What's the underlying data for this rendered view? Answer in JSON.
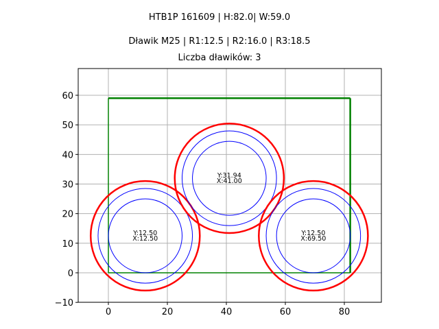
{
  "titles": {
    "line1": "HTB1P 161609 | H:82.0| W:59.0",
    "line2": "Dławik M25 | R1:12.5 | R2:16.0 | R3:18.5",
    "line3": "Liczba dławików: 3"
  },
  "colors": {
    "outer": "#ff0000",
    "inner": "#0000ff",
    "box": "#008000",
    "grid": "#b0b0b0"
  },
  "chart_data": {
    "type": "scatter",
    "title": "HTB1P 161609 | H:82.0| W:59.0 / Dławik M25 | R1:12.5 | R2:16.0 | R3:18.5 / Liczba dławików: 3",
    "xlabel": "",
    "ylabel": "",
    "xlim": [
      -10,
      92
    ],
    "ylim": [
      -10,
      69
    ],
    "xticks": [
      0,
      20,
      40,
      60,
      80
    ],
    "yticks": [
      -10,
      0,
      10,
      20,
      30,
      40,
      50,
      60
    ],
    "grid": true,
    "rectangle": {
      "x": 0,
      "y": 0,
      "width": 82.0,
      "height": 59.0,
      "color": "green"
    },
    "radii": {
      "R1": 12.5,
      "R2": 16.0,
      "R3": 18.5
    },
    "circles": [
      {
        "x": 12.5,
        "y": 12.5,
        "label_y": "Y:12.50",
        "label_x": "X:12.50"
      },
      {
        "x": 41.0,
        "y": 31.94,
        "label_y": "Y:31.94",
        "label_x": "X:41.00"
      },
      {
        "x": 69.5,
        "y": 12.5,
        "label_y": "Y:12.50",
        "label_x": "X:69.50"
      }
    ]
  }
}
